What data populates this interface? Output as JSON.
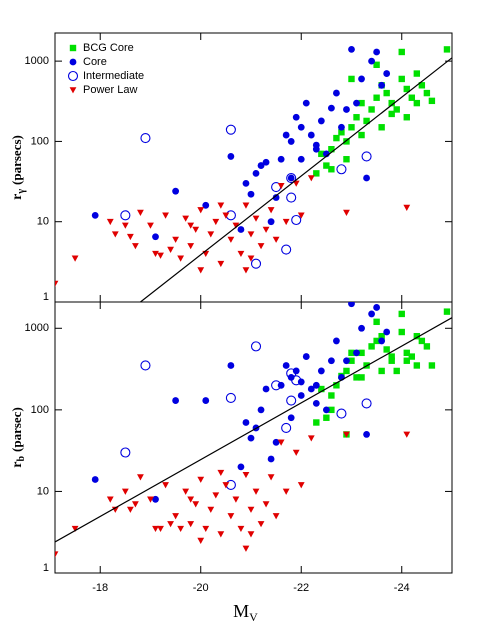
{
  "chart_data": [
    {
      "type": "scatter",
      "ylog": true,
      "legend": "upper left",
      "ylabel": [
        "r",
        "γ",
        "(parsecs)"
      ],
      "xlim": [
        -17.1,
        -25
      ],
      "ylim": [
        1,
        2240
      ],
      "yticks": [
        1,
        10,
        100,
        1000
      ],
      "xticks": [
        -18,
        -20,
        -22,
        -24
      ],
      "fit": {
        "color": "#000000",
        "x": [
          -18.8,
          -25
        ],
        "values": [
          1,
          1100
        ]
      },
      "series": [
        {
          "name": "BCG Core",
          "color": "#00e000",
          "marker": "square",
          "x": [
            -22.3,
            -22.5,
            -22.6,
            -22.7,
            -22.8,
            -22.9,
            -23.0,
            -23.1,
            -23.2,
            -23.3,
            -23.4,
            -23.5,
            -23.6,
            -23.7,
            -23.8,
            -23.9,
            -24.0,
            -24.1,
            -24.2,
            -24.3,
            -24.4,
            -24.5,
            -24.6,
            -23.0,
            -23.5,
            -24.0,
            -24.9,
            -22.9,
            -23.6,
            -24.1,
            -22.4,
            -23.8,
            -22.6,
            -23.2,
            -24.3
          ],
          "values": [
            40,
            50,
            80,
            110,
            130,
            100,
            150,
            200,
            300,
            180,
            250,
            350,
            500,
            400,
            300,
            250,
            600,
            450,
            350,
            300,
            500,
            400,
            320,
            600,
            900,
            1300,
            1400,
            60,
            150,
            200,
            70,
            220,
            45,
            120,
            700
          ]
        },
        {
          "name": "Core",
          "color": "#0000e0",
          "marker": "circle",
          "x": [
            -17.9,
            -19.1,
            -19.5,
            -20.1,
            -20.6,
            -20.9,
            -21.2,
            -21.3,
            -21.5,
            -21.6,
            -21.7,
            -21.8,
            -21.9,
            -22.0,
            -22.1,
            -22.2,
            -22.3,
            -22.4,
            -22.5,
            -22.6,
            -22.7,
            -22.8,
            -23.0,
            -23.1,
            -23.2,
            -23.3,
            -23.4,
            -23.5,
            -23.6,
            -21.0,
            -21.4,
            -21.8,
            -22.0,
            -22.3,
            -22.9,
            -23.7,
            -20.8,
            -21.1
          ],
          "values": [
            12,
            6.5,
            24,
            16,
            65,
            30,
            50,
            55,
            20,
            60,
            120,
            100,
            200,
            150,
            300,
            120,
            90,
            180,
            70,
            260,
            400,
            150,
            1400,
            300,
            600,
            35,
            1000,
            1300,
            500,
            22,
            10,
            35,
            60,
            80,
            250,
            700,
            8,
            40
          ]
        },
        {
          "name": "Intermediate",
          "color": "#0000e0",
          "marker": "open-circle",
          "x": [
            -18.5,
            -18.9,
            -20.6,
            -20.6,
            -21.1,
            -21.5,
            -21.7,
            -21.9,
            -21.8,
            -22.8,
            -23.3,
            -21.8
          ],
          "values": [
            12,
            110,
            140,
            12,
            3,
            27,
            4.5,
            10.5,
            20,
            45,
            65,
            35
          ]
        },
        {
          "name": "Power Law",
          "color": "#e00000",
          "marker": "triangle-down",
          "x": [
            -17.1,
            -17.5,
            -18.3,
            -18.5,
            -18.7,
            -18.8,
            -19.0,
            -19.1,
            -19.3,
            -19.5,
            -19.6,
            -19.7,
            -19.8,
            -19.9,
            -20.0,
            -20.1,
            -20.2,
            -20.3,
            -20.4,
            -20.5,
            -20.6,
            -20.7,
            -20.8,
            -20.9,
            -21.0,
            -21.1,
            -21.2,
            -21.3,
            -21.4,
            -21.5,
            -21.6,
            -21.7,
            -21.9,
            -22.0,
            -22.2,
            -18.2,
            -19.4,
            -20.0,
            -20.9,
            -22.9,
            -24.1,
            -19.2,
            -20.4,
            -21.0,
            -18.6,
            -19.8
          ],
          "values": [
            1.7,
            3.5,
            7,
            9,
            5,
            13,
            9,
            4,
            12,
            6,
            3.5,
            11,
            5,
            8,
            14,
            4,
            7,
            10,
            3,
            12,
            6,
            9,
            4,
            16,
            7,
            11,
            5,
            8,
            14,
            6,
            28,
            10,
            30,
            12,
            35,
            10,
            4.5,
            2.5,
            2.5,
            13,
            15,
            3.8,
            16,
            3.5,
            6.5,
            9
          ]
        }
      ]
    },
    {
      "type": "scatter",
      "ylog": true,
      "ylabel": [
        "r",
        "b",
        "(parsec)"
      ],
      "xlabel": [
        "M",
        "V"
      ],
      "xlim": [
        -17.1,
        -25
      ],
      "ylim": [
        1,
        2100
      ],
      "yticks": [
        1,
        10,
        100,
        1000
      ],
      "xticks": [
        -18,
        -20,
        -22,
        -24
      ],
      "fit": {
        "color": "#000000",
        "x": [
          -17.1,
          -25
        ],
        "values": [
          2.4,
          1350
        ]
      },
      "series": [
        {
          "color": "#00e000",
          "marker": "square",
          "x": [
            -22.3,
            -22.5,
            -22.6,
            -22.7,
            -22.8,
            -22.9,
            -23.0,
            -23.1,
            -23.2,
            -23.3,
            -23.4,
            -23.5,
            -23.6,
            -23.7,
            -23.8,
            -23.9,
            -24.0,
            -24.1,
            -24.2,
            -24.3,
            -24.4,
            -24.5,
            -24.6,
            -23.0,
            -23.5,
            -24.0,
            -24.9,
            -22.9,
            -23.6,
            -24.1,
            -22.4,
            -23.8,
            -22.6,
            -23.2,
            -24.3
          ],
          "values": [
            70,
            80,
            150,
            200,
            260,
            300,
            400,
            250,
            500,
            350,
            600,
            700,
            800,
            550,
            400,
            300,
            900,
            500,
            450,
            350,
            700,
            600,
            350,
            500,
            1200,
            1500,
            1600,
            50,
            300,
            400,
            180,
            450,
            100,
            250,
            800
          ]
        },
        {
          "color": "#0000e0",
          "marker": "circle",
          "x": [
            -17.9,
            -19.1,
            -19.5,
            -20.1,
            -20.6,
            -20.9,
            -21.2,
            -21.3,
            -21.5,
            -21.6,
            -21.7,
            -21.8,
            -21.9,
            -22.0,
            -22.1,
            -22.2,
            -22.3,
            -22.4,
            -22.5,
            -22.6,
            -22.7,
            -22.8,
            -23.0,
            -23.1,
            -23.2,
            -23.3,
            -23.4,
            -23.5,
            -23.6,
            -21.0,
            -21.4,
            -21.8,
            -22.0,
            -22.3,
            -22.9,
            -23.7,
            -20.8,
            -21.1
          ],
          "values": [
            14,
            8,
            130,
            130,
            350,
            70,
            100,
            180,
            40,
            200,
            350,
            250,
            300,
            220,
            450,
            180,
            120,
            300,
            100,
            400,
            700,
            250,
            2000,
            500,
            1000,
            50,
            1500,
            1800,
            700,
            45,
            25,
            80,
            150,
            200,
            400,
            900,
            20,
            60
          ]
        },
        {
          "color": "#0000e0",
          "marker": "open-circle",
          "x": [
            -18.5,
            -18.9,
            -20.6,
            -20.6,
            -21.1,
            -21.5,
            -21.7,
            -21.9,
            -21.8,
            -22.8,
            -23.3,
            -21.8
          ],
          "values": [
            30,
            350,
            140,
            12,
            600,
            200,
            60,
            230,
            130,
            90,
            120,
            280
          ]
        },
        {
          "color": "#e00000",
          "marker": "triangle-down",
          "x": [
            -17.1,
            -17.5,
            -18.3,
            -18.5,
            -18.7,
            -18.8,
            -19.0,
            -19.1,
            -19.3,
            -19.5,
            -19.6,
            -19.7,
            -19.8,
            -19.9,
            -20.0,
            -20.1,
            -20.2,
            -20.3,
            -20.4,
            -20.5,
            -20.6,
            -20.7,
            -20.8,
            -20.9,
            -21.0,
            -21.1,
            -21.2,
            -21.3,
            -21.4,
            -21.5,
            -21.6,
            -21.7,
            -21.9,
            -22.0,
            -22.2,
            -18.2,
            -19.4,
            -20.0,
            -20.9,
            -22.9,
            -24.1,
            -19.2,
            -20.4,
            -21.0,
            -18.6,
            -19.8
          ],
          "values": [
            1.7,
            3.5,
            6,
            10,
            7,
            15,
            8,
            3.5,
            12,
            5,
            3.5,
            10,
            4,
            7,
            14,
            3.5,
            6,
            9,
            3,
            12,
            5,
            8,
            3.5,
            16,
            6,
            10,
            4,
            7,
            15,
            5,
            40,
            10,
            30,
            12,
            45,
            8,
            4,
            2.5,
            2,
            50,
            50,
            3.5,
            17,
            3,
            6,
            8
          ]
        }
      ]
    }
  ]
}
